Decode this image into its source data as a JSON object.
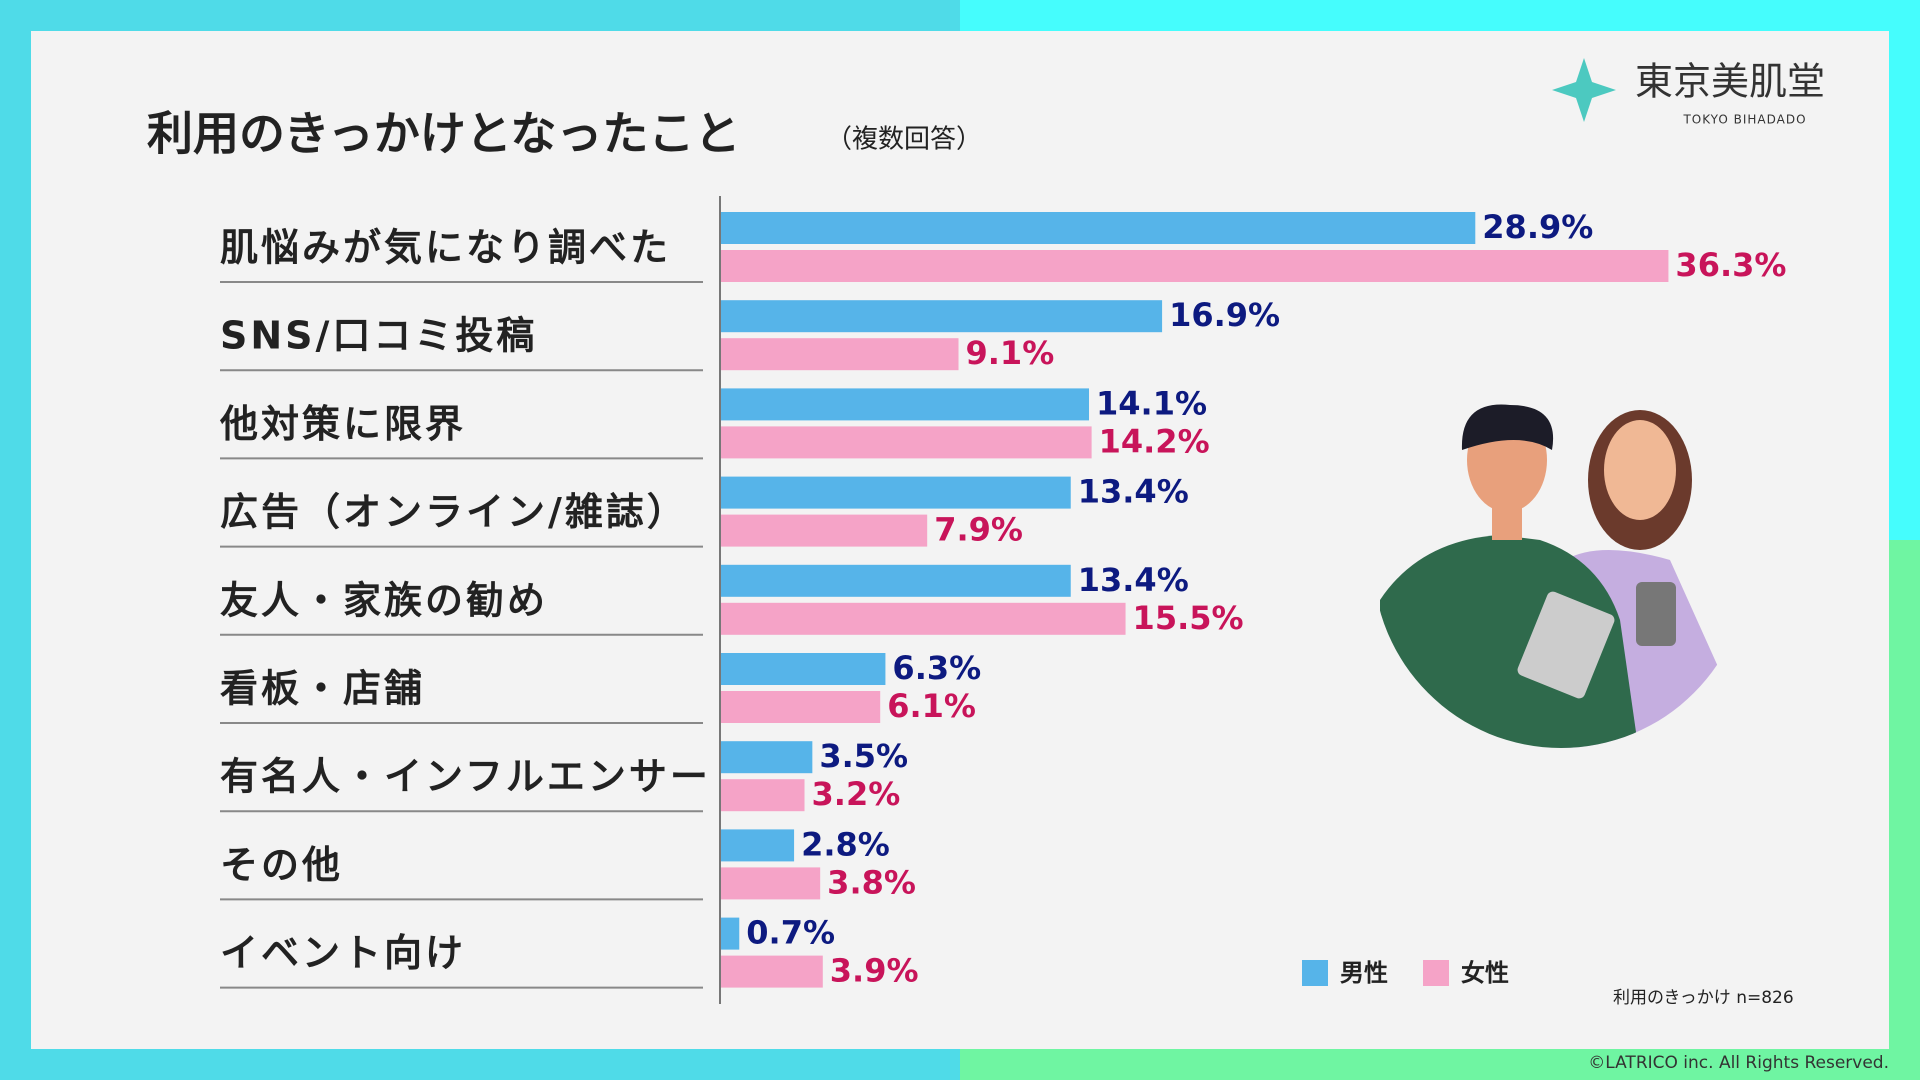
{
  "chart_data": {
    "type": "hbar",
    "title": "利用のきっかけとなったこと",
    "subtitle": "（複数回答）",
    "categories": [
      "肌悩みが気になり調べた",
      "SNS/口コミ投稿",
      "他対策に限界",
      "広告（オンライン/雑誌）",
      "友人・家族の勧め",
      "看板・店舗",
      "有名人・インフルエンサー",
      "その他",
      "イベント向け"
    ],
    "series": [
      {
        "name": "男性",
        "color": "#56b4e9",
        "label_color": "#0d1a80",
        "values": [
          28.9,
          16.9,
          14.1,
          13.4,
          13.4,
          6.3,
          3.5,
          2.8,
          0.7
        ],
        "value_labels": [
          "28.9%",
          "16.9%",
          "14.1%",
          "13.4%",
          "13.4%",
          "6.3%",
          "3.5%",
          "2.8%",
          "0.7%"
        ]
      },
      {
        "name": "女性",
        "color": "#f5a3c7",
        "label_color": "#c8145a",
        "values": [
          36.3,
          9.1,
          14.2,
          7.9,
          15.5,
          6.1,
          3.2,
          3.8,
          3.9
        ],
        "value_labels": [
          "36.3%",
          "9.1%",
          "14.2%",
          "7.9%",
          "15.5%",
          "6.1%",
          "3.2%",
          "3.8%",
          "3.9%"
        ]
      }
    ],
    "note": "利用のきっかけ n=826",
    "logo": "東京美肌堂",
    "logo_sub": "TOKYO BIHADADO",
    "copyright": "©LATRICO inc. All Rights Reserved."
  }
}
